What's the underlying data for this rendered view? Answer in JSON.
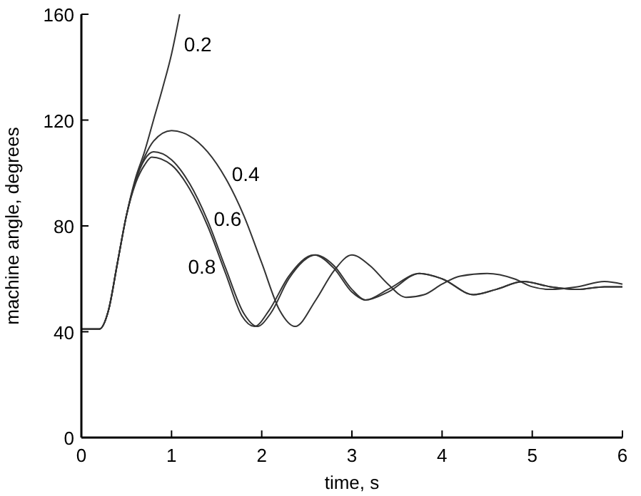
{
  "chart_data": {
    "type": "line",
    "xlabel": "time, s",
    "ylabel": "machine angle, degrees",
    "xlim": [
      0,
      6
    ],
    "ylim": [
      0,
      160
    ],
    "xticks": [
      0,
      1,
      2,
      3,
      4,
      5,
      6
    ],
    "yticks": [
      0,
      40,
      80,
      120,
      160
    ],
    "grid": false,
    "line_style": "solid",
    "series": [
      {
        "color": "#333333",
        "x": [
          0,
          0.2,
          0.3,
          0.4,
          0.5,
          0.6,
          0.7,
          0.8,
          0.9,
          1.0,
          1.09
        ],
        "values": [
          41,
          41,
          48,
          66,
          84,
          98,
          108,
          120,
          132,
          145,
          160
        ]
      },
      {
        "color": "#333333",
        "x": [
          0,
          0.2,
          0.3,
          0.4,
          0.5,
          0.6,
          0.7,
          0.8,
          1.0,
          1.2,
          1.4,
          1.6,
          1.8,
          2.0,
          2.2,
          2.37,
          2.6,
          2.8,
          3.0,
          3.2,
          3.4,
          3.6,
          3.8,
          4.0,
          4.2,
          4.5,
          4.8,
          5.0,
          5.2,
          5.5,
          5.8,
          6.0
        ],
        "values": [
          41,
          41,
          48,
          66,
          84,
          97,
          106,
          112,
          116,
          114,
          108,
          98,
          84,
          66,
          48,
          42,
          52,
          63,
          69,
          65,
          58,
          53,
          54,
          58,
          61,
          62,
          60,
          57,
          56,
          57,
          59,
          58
        ]
      },
      {
        "color": "#333333",
        "x": [
          0,
          0.2,
          0.3,
          0.4,
          0.5,
          0.6,
          0.7,
          0.8,
          1.0,
          1.2,
          1.4,
          1.6,
          1.8,
          1.95,
          2.1,
          2.3,
          2.6,
          2.8,
          3.0,
          3.15,
          3.4,
          3.75,
          4.0,
          4.35,
          4.6,
          4.9,
          5.2,
          5.5,
          5.8,
          6.0
        ],
        "values": [
          41,
          41,
          48,
          66,
          84,
          97,
          105,
          108,
          105,
          96,
          82,
          64,
          47,
          42,
          47,
          60,
          69,
          65,
          56,
          52,
          55,
          62,
          60,
          54,
          56,
          59,
          57,
          56,
          57,
          57
        ]
      },
      {
        "color": "#333333",
        "x": [
          0,
          0.2,
          0.3,
          0.4,
          0.5,
          0.6,
          0.7,
          0.78,
          1.0,
          1.2,
          1.4,
          1.6,
          1.78,
          1.92,
          2.08,
          2.3,
          2.58,
          2.8,
          3.0,
          3.15,
          3.4,
          3.75,
          4.0,
          4.35,
          4.6,
          4.9,
          5.2,
          5.5,
          5.8,
          6.0
        ],
        "values": [
          41,
          41,
          48,
          66,
          84,
          96,
          103,
          106,
          103,
          94,
          80,
          62,
          46,
          42,
          48,
          61,
          69,
          64,
          55,
          52,
          56,
          62,
          60,
          54,
          56,
          59,
          57,
          56,
          57,
          57
        ]
      }
    ],
    "annotations": [
      {
        "text": "0.2",
        "x": 1.09,
        "y": 148
      },
      {
        "text": "0.4",
        "x": 1.62,
        "y": 99
      },
      {
        "text": "0.6",
        "x": 1.42,
        "y": 82
      },
      {
        "text": "0.8",
        "x": 1.57,
        "y": 64
      }
    ]
  }
}
